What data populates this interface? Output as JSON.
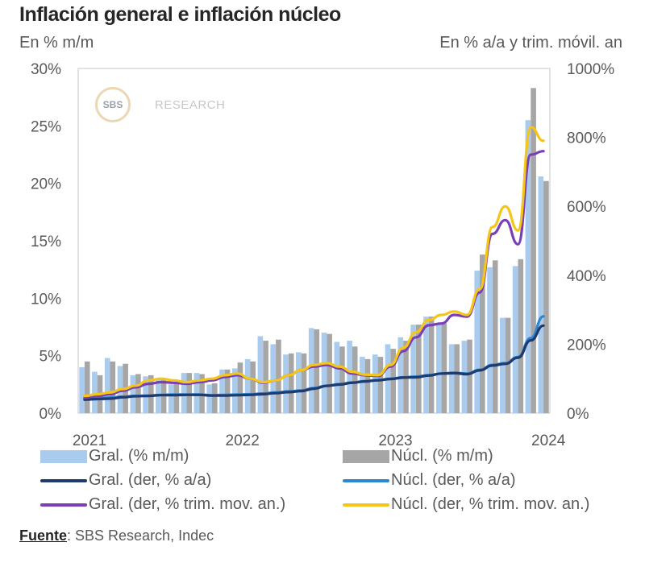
{
  "title": "Inflación general e inflación núcleo",
  "subtitle_left": "En % m/m",
  "subtitle_right": "En % a/a y trim. móvil. an",
  "watermark": {
    "logo": "SBS",
    "text": "RESEARCH"
  },
  "source": {
    "label": "Fuente",
    "text": ": SBS Research, Indec"
  },
  "colors": {
    "gral_mm": "#a9cbee",
    "nucl_mm": "#a6a6a6",
    "gral_yoy": "#1f3a6e",
    "nucl_yoy": "#2f86d0",
    "gral_3m": "#7a3fb5",
    "nucl_3m": "#f5c518"
  },
  "chart_data": {
    "type": "bar+line",
    "title": "Inflación general e inflación núcleo",
    "ylabel_left": "En % m/m",
    "ylabel_right": "En % a/a y trim. móvil. an",
    "ylim_left": [
      0,
      30
    ],
    "ylim_right": [
      0,
      1000
    ],
    "yticks_left": [
      "0%",
      "5%",
      "10%",
      "15%",
      "20%",
      "25%",
      "30%"
    ],
    "yticks_right": [
      "0%",
      "200%",
      "400%",
      "600%",
      "800%",
      "1000%"
    ],
    "xticks": [
      "2021",
      "2022",
      "2023",
      "2024"
    ],
    "x": [
      "2021-01",
      "2021-02",
      "2021-03",
      "2021-04",
      "2021-05",
      "2021-06",
      "2021-07",
      "2021-08",
      "2021-09",
      "2021-10",
      "2021-11",
      "2021-12",
      "2022-01",
      "2022-02",
      "2022-03",
      "2022-04",
      "2022-05",
      "2022-06",
      "2022-07",
      "2022-08",
      "2022-09",
      "2022-10",
      "2022-11",
      "2022-12",
      "2023-01",
      "2023-02",
      "2023-03",
      "2023-04",
      "2023-05",
      "2023-06",
      "2023-07",
      "2023-08",
      "2023-09",
      "2023-10",
      "2023-11",
      "2023-12",
      "2024-01"
    ],
    "series": [
      {
        "name": "Gral. (% m/m)",
        "axis": "left",
        "kind": "bar",
        "values": [
          4.0,
          3.6,
          4.8,
          4.1,
          3.3,
          3.2,
          3.0,
          2.5,
          3.5,
          3.5,
          2.5,
          3.8,
          3.9,
          4.7,
          6.7,
          6.0,
          5.1,
          5.3,
          7.4,
          7.0,
          6.2,
          6.3,
          4.9,
          5.1,
          6.0,
          6.6,
          7.7,
          8.4,
          7.8,
          6.0,
          6.3,
          12.4,
          12.7,
          8.3,
          12.8,
          25.5,
          20.6
        ]
      },
      {
        "name": "Núcl. (% m/m)",
        "axis": "left",
        "kind": "bar",
        "values": [
          4.5,
          3.3,
          4.5,
          4.3,
          3.4,
          3.3,
          3.0,
          2.6,
          3.5,
          3.4,
          2.6,
          3.8,
          4.4,
          4.5,
          6.3,
          6.4,
          5.2,
          5.2,
          7.3,
          6.9,
          5.8,
          5.8,
          4.7,
          4.9,
          5.6,
          6.3,
          7.7,
          8.4,
          7.8,
          6.0,
          6.4,
          13.8,
          13.3,
          8.3,
          13.4,
          28.3,
          20.2
        ]
      },
      {
        "name": "Gral. (der, % a/a)",
        "axis": "right",
        "kind": "line",
        "values": [
          39,
          41,
          42,
          46,
          49,
          50,
          52,
          52,
          53,
          53,
          51,
          51,
          52,
          53,
          55,
          58,
          61,
          64,
          71,
          79,
          83,
          88,
          92,
          95,
          99,
          103,
          104,
          109,
          115,
          116,
          113,
          124,
          138,
          143,
          161,
          211,
          254
        ]
      },
      {
        "name": "Núcl. (der, % a/a)",
        "axis": "right",
        "kind": "line",
        "values": [
          42,
          44,
          45,
          48,
          50,
          51,
          53,
          54,
          54,
          54,
          52,
          53,
          54,
          55,
          57,
          60,
          63,
          66,
          73,
          80,
          84,
          89,
          93,
          96,
          100,
          104,
          106,
          110,
          115,
          117,
          115,
          126,
          140,
          145,
          163,
          218,
          281
        ]
      },
      {
        "name": "Gral. (der, % trim. mov. an.)",
        "axis": "right",
        "kind": "line",
        "values": [
          45,
          50,
          55,
          65,
          75,
          85,
          90,
          88,
          85,
          90,
          95,
          105,
          110,
          100,
          88,
          95,
          110,
          125,
          135,
          140,
          130,
          115,
          110,
          108,
          135,
          180,
          220,
          255,
          260,
          285,
          280,
          350,
          520,
          560,
          490,
          750,
          760
        ]
      },
      {
        "name": "Núcl. (der, % trim. mov. an.)",
        "axis": "right",
        "kind": "line",
        "values": [
          50,
          55,
          60,
          70,
          80,
          95,
          100,
          95,
          90,
          95,
          100,
          110,
          115,
          100,
          90,
          95,
          110,
          125,
          140,
          145,
          135,
          120,
          112,
          110,
          140,
          190,
          235,
          270,
          285,
          295,
          285,
          360,
          540,
          600,
          530,
          830,
          790
        ]
      }
    ],
    "legend": [
      {
        "label": "Gral. (% m/m)",
        "kind": "bar"
      },
      {
        "label": "Núcl. (% m/m)",
        "kind": "bar"
      },
      {
        "label": "Gral. (der, % a/a)",
        "kind": "line"
      },
      {
        "label": "Núcl. (der, % a/a)",
        "kind": "line"
      },
      {
        "label": "Gral. (der, % trim. mov. an.)",
        "kind": "line"
      },
      {
        "label": "Núcl. (der, % trim. mov. an.)",
        "kind": "line"
      }
    ],
    "legend_position": "bottom",
    "grid": false
  }
}
